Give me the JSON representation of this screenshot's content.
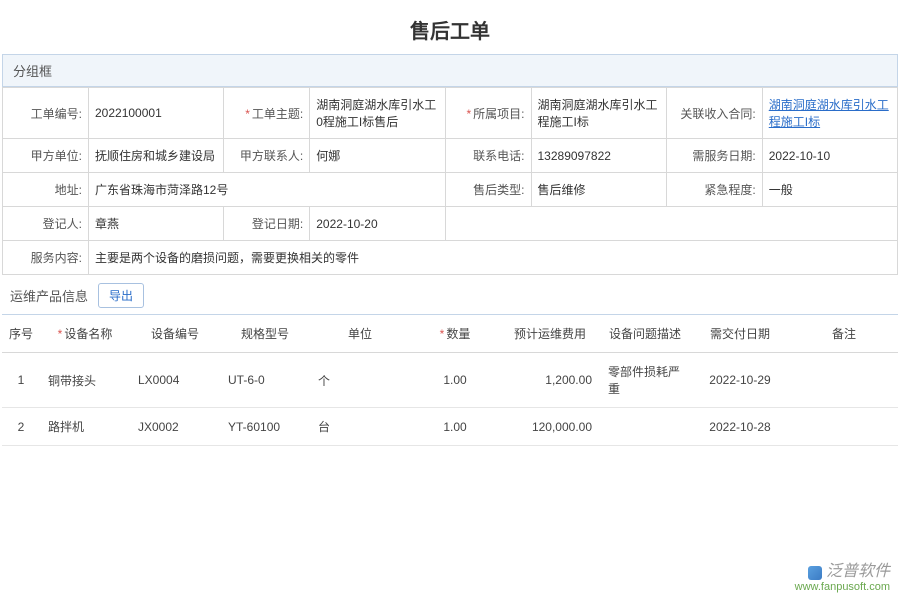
{
  "page": {
    "title": "售后工单"
  },
  "group": {
    "header": "分组框"
  },
  "form": {
    "order_no": {
      "label": "工单编号:",
      "value": "2022100001"
    },
    "subject": {
      "label": "工单主题:",
      "value": "湖南洞庭湖水库引水工0程施工I标售后",
      "required": true
    },
    "project": {
      "label": "所属项目:",
      "value": "湖南洞庭湖水库引水工程施工I标",
      "required": true
    },
    "contract": {
      "label": "关联收入合同:",
      "value": "湖南洞庭湖水库引水工程施工I标",
      "is_link": true
    },
    "party_a": {
      "label": "甲方单位:",
      "value": "抚顺住房和城乡建设局"
    },
    "contact": {
      "label": "甲方联系人:",
      "value": "何娜"
    },
    "phone": {
      "label": "联系电话:",
      "value": "13289097822"
    },
    "service_date": {
      "label": "需服务日期:",
      "value": "2022-10-10"
    },
    "address": {
      "label": "地址:",
      "value": "广东省珠海市菏泽路12号"
    },
    "type": {
      "label": "售后类型:",
      "value": "售后维修"
    },
    "urgency": {
      "label": "紧急程度:",
      "value": "一般"
    },
    "registrant": {
      "label": "登记人:",
      "value": "章燕"
    },
    "reg_date": {
      "label": "登记日期:",
      "value": "2022-10-20"
    },
    "content": {
      "label": "服务内容:",
      "value": "主要是两个设备的磨损问题，需要更换相关的零件"
    }
  },
  "section": {
    "title": "运维产品信息",
    "export_label": "导出"
  },
  "table": {
    "columns": {
      "seq": "序号",
      "device_name": "设备名称",
      "device_no": "设备编号",
      "spec": "规格型号",
      "unit": "单位",
      "qty": "数量",
      "cost": "预计运维费用",
      "issue": "设备问题描述",
      "due": "需交付日期",
      "remark": "备注"
    },
    "required": {
      "device_name": true,
      "qty": true
    },
    "rows": [
      {
        "seq": "1",
        "device_name": "铜带接头",
        "device_no": "LX0004",
        "spec": "UT-6-0",
        "unit": "个",
        "qty": "1.00",
        "cost": "1,200.00",
        "issue": "零部件损耗严重",
        "due": "2022-10-29",
        "remark": ""
      },
      {
        "seq": "2",
        "device_name": "路拌机",
        "device_no": "JX0002",
        "spec": "YT-60100",
        "unit": "台",
        "qty": "1.00",
        "cost": "120,000.00",
        "issue": "",
        "due": "2022-10-28",
        "remark": ""
      }
    ]
  },
  "watermark": {
    "brand": "泛普软件",
    "url": "www.fanpusoft.com"
  },
  "colors": {
    "header_bg": "#f0f5fa",
    "header_border": "#c4d5e8",
    "cell_border": "#d8d8d8",
    "link": "#2a6dc9",
    "required": "#d9534f"
  }
}
